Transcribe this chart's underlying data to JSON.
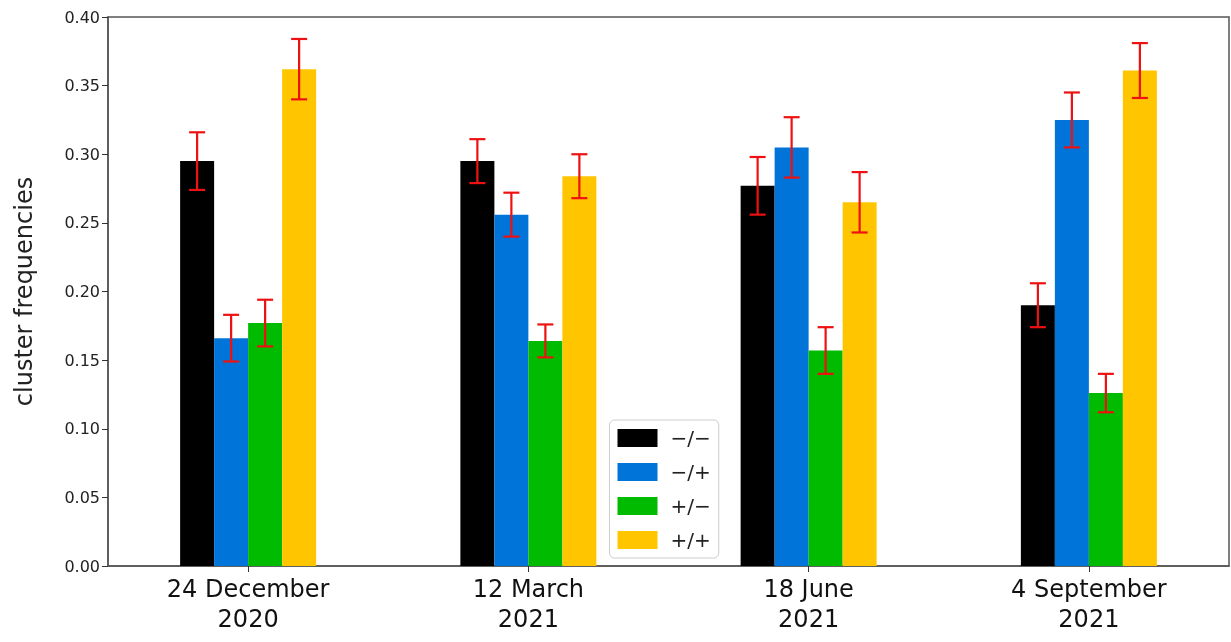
{
  "chart_data": {
    "type": "bar",
    "ylabel": "cluster frequencies",
    "categories": [
      "24 December\n2020",
      "12 March\n2021",
      "18 June\n2021",
      "4 September\n2021"
    ],
    "series": [
      {
        "name": "−/−",
        "color": "#000000",
        "values": [
          0.295,
          0.295,
          0.277,
          0.19
        ],
        "errors": [
          0.021,
          0.016,
          0.021,
          0.016
        ]
      },
      {
        "name": "−/+",
        "color": "#0074d9",
        "values": [
          0.166,
          0.256,
          0.305,
          0.325
        ],
        "errors": [
          0.017,
          0.016,
          0.022,
          0.02
        ]
      },
      {
        "name": "+/−",
        "color": "#00bb00",
        "values": [
          0.177,
          0.164,
          0.157,
          0.126
        ],
        "errors": [
          0.017,
          0.012,
          0.017,
          0.014
        ]
      },
      {
        "name": "+/+",
        "color": "#ffc600",
        "values": [
          0.362,
          0.284,
          0.265,
          0.361
        ],
        "errors": [
          0.022,
          0.016,
          0.022,
          0.02
        ]
      }
    ],
    "ylim": [
      0,
      0.4
    ],
    "yticks": [
      {
        "value": 0,
        "label": "0.00"
      },
      0.05,
      {
        "value": 0.1,
        "label": "0.10"
      },
      0.15,
      {
        "value": 0.2,
        "label": "0.20"
      },
      0.25,
      {
        "value": 0.3,
        "label": "0.30"
      },
      0.35,
      {
        "value": 0.4,
        "label": "0.40"
      }
    ],
    "grid": false,
    "legend": "bottom"
  }
}
